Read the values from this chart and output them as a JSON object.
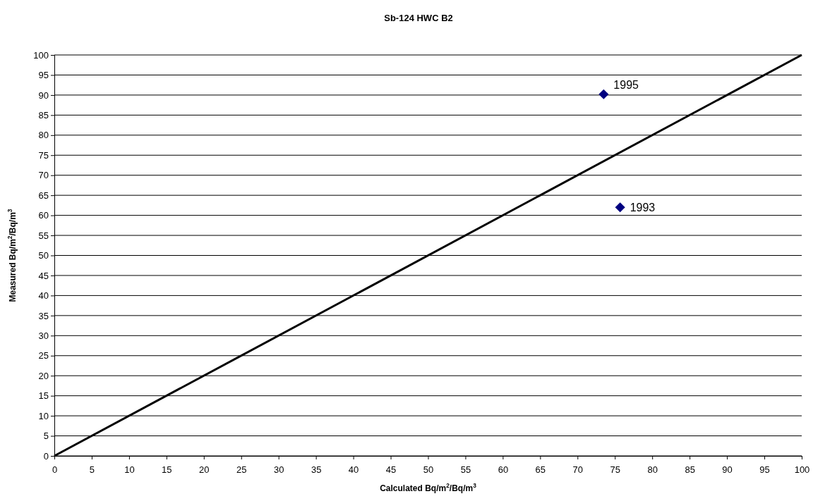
{
  "chart_data": {
    "type": "scatter",
    "title": "Sb-124 HWC B2",
    "xlabel": "Calculated Bq/m$^{2}$/Bq/m$^{3}$",
    "ylabel": "Measured Bq/m$^{2}$/Bq/m$^{3}$",
    "xlim": [
      0,
      100
    ],
    "ylim": [
      0,
      100
    ],
    "xticks": [
      0,
      5,
      10,
      15,
      20,
      25,
      30,
      35,
      40,
      45,
      50,
      55,
      60,
      65,
      70,
      75,
      80,
      85,
      90,
      95,
      100
    ],
    "yticks": [
      0,
      5,
      10,
      15,
      20,
      25,
      30,
      35,
      40,
      45,
      50,
      55,
      60,
      65,
      70,
      75,
      80,
      85,
      90,
      95,
      100
    ],
    "grid": "y",
    "marker": "diamond",
    "annotations": [
      {
        "text": "1993",
        "x": 75.7,
        "y": 62
      },
      {
        "text": "1995",
        "x": 73.5,
        "y": 90.2
      }
    ],
    "series": [
      {
        "color": "#000080",
        "x": [
          75.7,
          73.5
        ],
        "values": [
          62,
          90.2
        ]
      },
      {
        "type": "line",
        "color": "#000000",
        "x": [
          0,
          100
        ],
        "values": [
          0,
          100
        ],
        "marker": "none",
        "line_style": "solid"
      }
    ]
  }
}
